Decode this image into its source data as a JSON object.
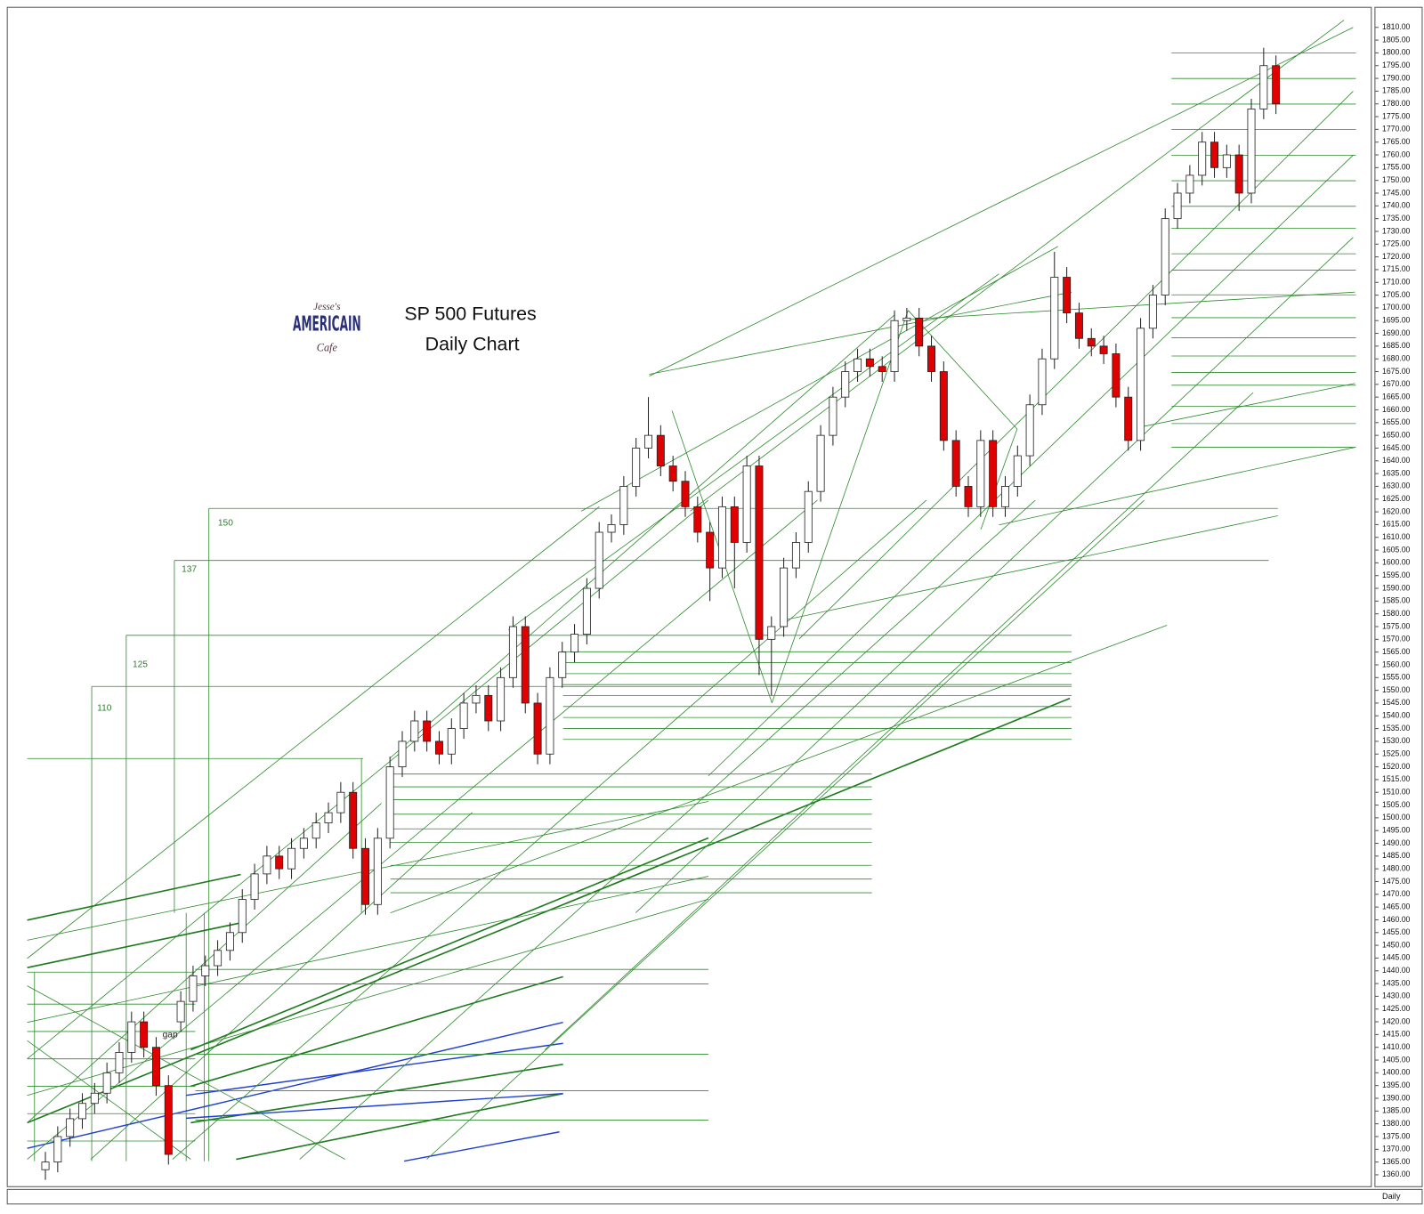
{
  "chart_data": {
    "type": "candlestick",
    "title": "SP 500 Futures",
    "subtitle": "Daily Chart",
    "logo": [
      "Jesse's",
      "AMERICAIN",
      "Cafe"
    ],
    "annotations": [
      "150",
      "137",
      "125",
      "110",
      "gap"
    ],
    "period_label": "Daily",
    "up_color": "#ffffff",
    "down_color": "#e00000",
    "open": [
      1362,
      1365,
      1375,
      1382,
      1388,
      1392,
      1400,
      1408,
      1420,
      1410,
      1395,
      1420,
      1428,
      1438,
      1442,
      1448,
      1455,
      1468,
      1478,
      1485,
      1480,
      1488,
      1492,
      1498,
      1502,
      1510,
      1488,
      1466,
      1492,
      1520,
      1530,
      1538,
      1530,
      1525,
      1535,
      1545,
      1548,
      1538,
      1555,
      1575,
      1545,
      1525,
      1555,
      1565,
      1572,
      1590,
      1612,
      1615,
      1630,
      1645,
      1650,
      1638,
      1632,
      1622,
      1612,
      1598,
      1622,
      1608,
      1638,
      1570,
      1575,
      1598,
      1608,
      1628,
      1650,
      1665,
      1675,
      1680,
      1677,
      1675,
      1695,
      1696,
      1685,
      1675,
      1648,
      1630,
      1622,
      1648,
      1622,
      1630,
      1642,
      1662,
      1680,
      1712,
      1698,
      1688,
      1685,
      1682,
      1665,
      1648,
      1692,
      1705,
      1735,
      1745,
      1752,
      1765,
      1755,
      1760,
      1745,
      1778,
      1795
    ],
    "high": [
      1369,
      1379,
      1386,
      1392,
      1396,
      1404,
      1412,
      1424,
      1424,
      1414,
      1399,
      1432,
      1442,
      1446,
      1452,
      1459,
      1472,
      1482,
      1489,
      1489,
      1492,
      1496,
      1502,
      1506,
      1514,
      1514,
      1492,
      1496,
      1524,
      1534,
      1542,
      1542,
      1534,
      1539,
      1549,
      1552,
      1552,
      1559,
      1579,
      1579,
      1549,
      1559,
      1569,
      1576,
      1594,
      1616,
      1619,
      1634,
      1649,
      1665,
      1654,
      1642,
      1636,
      1626,
      1616,
      1626,
      1626,
      1642,
      1642,
      1579,
      1602,
      1612,
      1632,
      1654,
      1669,
      1679,
      1684,
      1684,
      1681,
      1699,
      1700,
      1700,
      1689,
      1679,
      1652,
      1634,
      1652,
      1652,
      1634,
      1646,
      1666,
      1684,
      1722,
      1716,
      1702,
      1692,
      1689,
      1686,
      1669,
      1696,
      1709,
      1739,
      1749,
      1756,
      1769,
      1769,
      1764,
      1764,
      1782,
      1802,
      1799
    ],
    "low": [
      1358,
      1361,
      1371,
      1378,
      1384,
      1388,
      1396,
      1404,
      1406,
      1391,
      1364,
      1416,
      1424,
      1434,
      1438,
      1444,
      1451,
      1464,
      1474,
      1476,
      1476,
      1484,
      1488,
      1494,
      1498,
      1484,
      1462,
      1462,
      1488,
      1516,
      1526,
      1526,
      1521,
      1521,
      1531,
      1541,
      1534,
      1534,
      1551,
      1541,
      1521,
      1521,
      1551,
      1561,
      1568,
      1586,
      1608,
      1611,
      1626,
      1641,
      1634,
      1628,
      1618,
      1608,
      1585,
      1594,
      1590,
      1604,
      1556,
      1548,
      1571,
      1594,
      1604,
      1624,
      1646,
      1661,
      1671,
      1673,
      1671,
      1671,
      1691,
      1681,
      1671,
      1644,
      1626,
      1618,
      1618,
      1618,
      1618,
      1626,
      1638,
      1658,
      1676,
      1694,
      1684,
      1681,
      1678,
      1661,
      1644,
      1644,
      1688,
      1701,
      1731,
      1741,
      1748,
      1751,
      1751,
      1738,
      1741,
      1774,
      1776
    ],
    "close": [
      1365,
      1375,
      1382,
      1388,
      1392,
      1400,
      1408,
      1420,
      1410,
      1395,
      1368,
      1428,
      1438,
      1442,
      1448,
      1455,
      1468,
      1478,
      1485,
      1480,
      1488,
      1492,
      1498,
      1502,
      1510,
      1488,
      1466,
      1492,
      1520,
      1530,
      1538,
      1530,
      1525,
      1535,
      1545,
      1548,
      1538,
      1555,
      1575,
      1545,
      1525,
      1555,
      1565,
      1572,
      1590,
      1612,
      1615,
      1630,
      1645,
      1650,
      1638,
      1632,
      1622,
      1612,
      1598,
      1622,
      1608,
      1638,
      1570,
      1575,
      1598,
      1608,
      1628,
      1650,
      1665,
      1675,
      1680,
      1677,
      1675,
      1695,
      1696,
      1685,
      1675,
      1648,
      1630,
      1622,
      1648,
      1622,
      1630,
      1642,
      1662,
      1680,
      1712,
      1698,
      1688,
      1685,
      1682,
      1665,
      1648,
      1692,
      1705,
      1735,
      1745,
      1752,
      1765,
      1755,
      1760,
      1745,
      1778,
      1795,
      1780
    ],
    "ylim": [
      1360,
      1810
    ],
    "yticks": [
      {
        "value": 1810,
        "label": "1810.00"
      },
      {
        "value": 1805,
        "label": "1805.00"
      },
      {
        "value": 1800,
        "label": "1800.00"
      },
      {
        "value": 1795,
        "label": "1795.00"
      },
      {
        "value": 1790,
        "label": "1790.00"
      },
      {
        "value": 1785,
        "label": "1785.00"
      },
      {
        "value": 1780,
        "label": "1780.00"
      },
      {
        "value": 1775,
        "label": "1775.00"
      },
      {
        "value": 1770,
        "label": "1770.00"
      },
      {
        "value": 1765,
        "label": "1765.00"
      },
      {
        "value": 1760,
        "label": "1760.00"
      },
      {
        "value": 1755,
        "label": "1755.00"
      },
      {
        "value": 1750,
        "label": "1750.00"
      },
      {
        "value": 1745,
        "label": "1745.00"
      },
      {
        "value": 1740,
        "label": "1740.00"
      },
      {
        "value": 1735,
        "label": "1735.00"
      },
      {
        "value": 1730,
        "label": "1730.00"
      },
      {
        "value": 1725,
        "label": "1725.00"
      },
      {
        "value": 1720,
        "label": "1720.00"
      },
      {
        "value": 1715,
        "label": "1715.00"
      },
      {
        "value": 1710,
        "label": "1710.00"
      },
      {
        "value": 1705,
        "label": "1705.00"
      },
      {
        "value": 1700,
        "label": "1700.00"
      },
      {
        "value": 1695,
        "label": "1695.00"
      },
      {
        "value": 1690,
        "label": "1690.00"
      },
      {
        "value": 1685,
        "label": "1685.00"
      },
      {
        "value": 1680,
        "label": "1680.00"
      },
      {
        "value": 1675,
        "label": "1675.00"
      },
      {
        "value": 1670,
        "label": "1670.00"
      },
      {
        "value": 1665,
        "label": "1665.00"
      },
      {
        "value": 1660,
        "label": "1660.00"
      },
      {
        "value": 1655,
        "label": "1655.00"
      },
      {
        "value": 1650,
        "label": "1650.00"
      },
      {
        "value": 1645,
        "label": "1645.00"
      },
      {
        "value": 1640,
        "label": "1640.00"
      },
      {
        "value": 1635,
        "label": "1635.00"
      },
      {
        "value": 1630,
        "label": "1630.00"
      },
      {
        "value": 1625,
        "label": "1625.00"
      },
      {
        "value": 1620,
        "label": "1620.00"
      },
      {
        "value": 1615,
        "label": "1615.00"
      },
      {
        "value": 1610,
        "label": "1610.00"
      },
      {
        "value": 1605,
        "label": "1605.00"
      },
      {
        "value": 1600,
        "label": "1600.00"
      },
      {
        "value": 1595,
        "label": "1595.00"
      },
      {
        "value": 1590,
        "label": "1590.00"
      },
      {
        "value": 1585,
        "label": "1585.00"
      },
      {
        "value": 1580,
        "label": "1580.00"
      },
      {
        "value": 1575,
        "label": "1575.00"
      },
      {
        "value": 1570,
        "label": "1570.00"
      },
      {
        "value": 1565,
        "label": "1565.00"
      },
      {
        "value": 1560,
        "label": "1560.00"
      },
      {
        "value": 1555,
        "label": "1555.00"
      },
      {
        "value": 1550,
        "label": "1550.00"
      },
      {
        "value": 1545,
        "label": "1545.00"
      },
      {
        "value": 1540,
        "label": "1540.00"
      },
      {
        "value": 1535,
        "label": "1535.00"
      },
      {
        "value": 1530,
        "label": "1530.00"
      },
      {
        "value": 1525,
        "label": "1525.00"
      },
      {
        "value": 1520,
        "label": "1520.00"
      },
      {
        "value": 1515,
        "label": "1515.00"
      },
      {
        "value": 1510,
        "label": "1510.00"
      },
      {
        "value": 1505,
        "label": "1505.00"
      },
      {
        "value": 1500,
        "label": "1500.00"
      },
      {
        "value": 1495,
        "label": "1495.00"
      },
      {
        "value": 1490,
        "label": "1490.00"
      },
      {
        "value": 1485,
        "label": "1485.00"
      },
      {
        "value": 1480,
        "label": "1480.00"
      },
      {
        "value": 1475,
        "label": "1475.00"
      },
      {
        "value": 1470,
        "label": "1470.00"
      },
      {
        "value": 1465,
        "label": "1465.00"
      },
      {
        "value": 1460,
        "label": "1460.00"
      },
      {
        "value": 1455,
        "label": "1455.00"
      },
      {
        "value": 1450,
        "label": "1450.00"
      },
      {
        "value": 1445,
        "label": "1445.00"
      },
      {
        "value": 1440,
        "label": "1440.00"
      },
      {
        "value": 1435,
        "label": "1435.00"
      },
      {
        "value": 1430,
        "label": "1430.00"
      },
      {
        "value": 1425,
        "label": "1425.00"
      },
      {
        "value": 1420,
        "label": "1420.00"
      },
      {
        "value": 1415,
        "label": "1415.00"
      },
      {
        "value": 1410,
        "label": "1410.00"
      },
      {
        "value": 1405,
        "label": "1405.00"
      },
      {
        "value": 1400,
        "label": "1400.00"
      },
      {
        "value": 1395,
        "label": "1395.00"
      },
      {
        "value": 1390,
        "label": "1390.00"
      },
      {
        "value": 1385,
        "label": "1385.00"
      },
      {
        "value": 1380,
        "label": "1380.00"
      },
      {
        "value": 1375,
        "label": "1375.00"
      },
      {
        "value": 1370,
        "label": "1370.00"
      },
      {
        "value": 1365,
        "label": "1365.00"
      },
      {
        "value": 1360,
        "label": "1360.00"
      }
    ]
  }
}
